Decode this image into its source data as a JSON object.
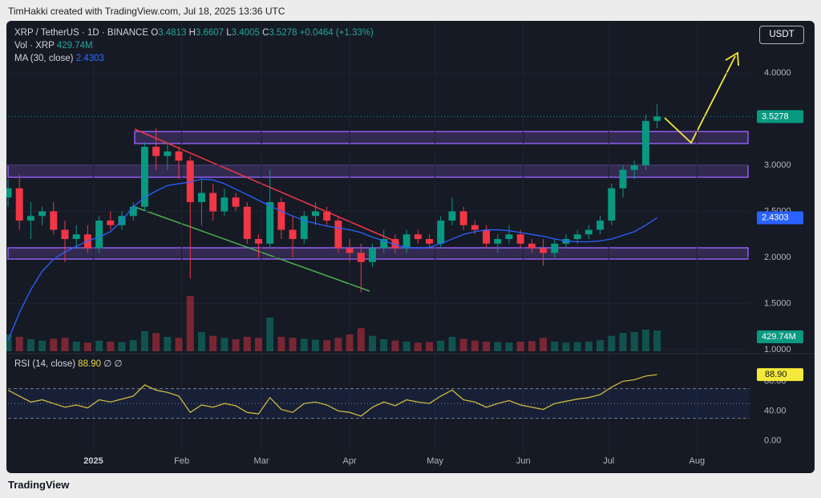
{
  "header": {
    "credit": "TimHakki created with TradingView.com, Jul 18, 2025 13:36 UTC",
    "symbol": "XRP / TetherUS · 1D · BINANCE",
    "o_label": "O",
    "o": "3.4813",
    "h_label": "H",
    "h": "3.6607",
    "l_label": "L",
    "l": "3.4005",
    "c_label": "C",
    "c": "3.5278",
    "change": "+0.0464 (+1.33%)",
    "vol_label": "Vol · XRP",
    "vol": "429.74M",
    "ma_label": "MA (30, close)",
    "ma": "2.4303",
    "rsi_label": "RSI (14, close)",
    "rsi": "88.90",
    "rsi_icons": "∅ ∅",
    "currency": "USDT",
    "brand": "TradingView"
  },
  "chart_data": [
    {
      "type": "candlestick",
      "up_color": "#089981",
      "down_color": "#f23645",
      "ma_color": "#2962ff",
      "xlim": [
        0,
        260.5
      ],
      "ylim": [
        0.983,
        4.557
      ],
      "xticks": [
        {
          "value": 30,
          "label": "2025"
        },
        {
          "value": 61,
          "label": "Feb"
        },
        {
          "value": 89,
          "label": "Mar"
        },
        {
          "value": 120,
          "label": "Apr"
        },
        {
          "value": 150,
          "label": "May"
        },
        {
          "value": 181,
          "label": "Jun"
        },
        {
          "value": 211,
          "label": "Jul"
        },
        {
          "value": 242,
          "label": "Aug"
        }
      ],
      "yticks": [
        {
          "value": 4,
          "label": "4.0000"
        },
        {
          "value": 3,
          "label": "3.0000"
        },
        {
          "value": 2.5,
          "label": "2.5000"
        },
        {
          "value": 2,
          "label": "2.0000"
        },
        {
          "value": 1.5,
          "label": "1.5000"
        },
        {
          "value": 1,
          "label": "1.0000"
        }
      ],
      "candles": [
        {
          "x": 0,
          "open": 2.65,
          "high": 2.85,
          "low": 2.55,
          "close": 2.75
        },
        {
          "x": 4,
          "open": 2.75,
          "high": 2.9,
          "low": 2.3,
          "close": 2.4
        },
        {
          "x": 8,
          "open": 2.4,
          "high": 2.6,
          "low": 2.2,
          "close": 2.45
        },
        {
          "x": 12,
          "open": 2.45,
          "high": 2.55,
          "low": 2.35,
          "close": 2.5
        },
        {
          "x": 16,
          "open": 2.5,
          "high": 2.6,
          "low": 2.25,
          "close": 2.3
        },
        {
          "x": 20,
          "open": 2.3,
          "high": 2.4,
          "low": 1.95,
          "close": 2.2
        },
        {
          "x": 24,
          "open": 2.2,
          "high": 2.35,
          "low": 2.1,
          "close": 2.25
        },
        {
          "x": 28,
          "open": 2.25,
          "high": 2.35,
          "low": 2.05,
          "close": 2.1
        },
        {
          "x": 32,
          "open": 2.1,
          "high": 2.45,
          "low": 2.05,
          "close": 2.4
        },
        {
          "x": 36,
          "open": 2.4,
          "high": 2.5,
          "low": 2.3,
          "close": 2.35
        },
        {
          "x": 40,
          "open": 2.35,
          "high": 2.5,
          "low": 2.3,
          "close": 2.45
        },
        {
          "x": 44,
          "open": 2.45,
          "high": 2.6,
          "low": 2.4,
          "close": 2.55
        },
        {
          "x": 48,
          "open": 2.55,
          "high": 3.25,
          "low": 2.5,
          "close": 3.2
        },
        {
          "x": 52,
          "open": 3.2,
          "high": 3.4,
          "low": 2.95,
          "close": 3.1
        },
        {
          "x": 56,
          "open": 3.1,
          "high": 3.25,
          "low": 2.95,
          "close": 3.15
        },
        {
          "x": 60,
          "open": 3.15,
          "high": 3.2,
          "low": 2.85,
          "close": 3.05
        },
        {
          "x": 64,
          "open": 3.05,
          "high": 3.1,
          "low": 1.77,
          "close": 2.6
        },
        {
          "x": 68,
          "open": 2.6,
          "high": 2.85,
          "low": 2.35,
          "close": 2.7
        },
        {
          "x": 72,
          "open": 2.7,
          "high": 2.8,
          "low": 2.4,
          "close": 2.5
        },
        {
          "x": 76,
          "open": 2.5,
          "high": 2.75,
          "low": 2.45,
          "close": 2.65
        },
        {
          "x": 80,
          "open": 2.65,
          "high": 2.7,
          "low": 2.5,
          "close": 2.55
        },
        {
          "x": 84,
          "open": 2.55,
          "high": 2.6,
          "low": 2.15,
          "close": 2.2
        },
        {
          "x": 88,
          "open": 2.2,
          "high": 2.25,
          "low": 2.0,
          "close": 2.15
        },
        {
          "x": 92,
          "open": 2.15,
          "high": 2.95,
          "low": 2.1,
          "close": 2.6
        },
        {
          "x": 96,
          "open": 2.6,
          "high": 2.65,
          "low": 2.2,
          "close": 2.3
        },
        {
          "x": 100,
          "open": 2.3,
          "high": 2.45,
          "low": 2.0,
          "close": 2.2
        },
        {
          "x": 104,
          "open": 2.2,
          "high": 2.5,
          "low": 2.15,
          "close": 2.45
        },
        {
          "x": 108,
          "open": 2.45,
          "high": 2.6,
          "low": 2.35,
          "close": 2.5
        },
        {
          "x": 112,
          "open": 2.5,
          "high": 2.55,
          "low": 2.35,
          "close": 2.4
        },
        {
          "x": 116,
          "open": 2.4,
          "high": 2.45,
          "low": 2.05,
          "close": 2.1
        },
        {
          "x": 120,
          "open": 2.1,
          "high": 2.2,
          "low": 1.95,
          "close": 2.05
        },
        {
          "x": 124,
          "open": 2.05,
          "high": 2.15,
          "low": 1.62,
          "close": 1.95
        },
        {
          "x": 128,
          "open": 1.95,
          "high": 2.15,
          "low": 1.9,
          "close": 2.1
        },
        {
          "x": 132,
          "open": 2.1,
          "high": 2.3,
          "low": 2.05,
          "close": 2.2
        },
        {
          "x": 136,
          "open": 2.2,
          "high": 2.25,
          "low": 2.05,
          "close": 2.1
        },
        {
          "x": 140,
          "open": 2.1,
          "high": 2.3,
          "low": 2.05,
          "close": 2.25
        },
        {
          "x": 144,
          "open": 2.25,
          "high": 2.3,
          "low": 2.15,
          "close": 2.2
        },
        {
          "x": 148,
          "open": 2.2,
          "high": 2.25,
          "low": 2.1,
          "close": 2.15
        },
        {
          "x": 152,
          "open": 2.15,
          "high": 2.45,
          "low": 2.1,
          "close": 2.4
        },
        {
          "x": 156,
          "open": 2.4,
          "high": 2.65,
          "low": 2.35,
          "close": 2.5
        },
        {
          "x": 160,
          "open": 2.5,
          "high": 2.55,
          "low": 2.3,
          "close": 2.35
        },
        {
          "x": 164,
          "open": 2.35,
          "high": 2.4,
          "low": 2.25,
          "close": 2.3
        },
        {
          "x": 168,
          "open": 2.3,
          "high": 2.35,
          "low": 2.1,
          "close": 2.15
        },
        {
          "x": 172,
          "open": 2.15,
          "high": 2.25,
          "low": 2.05,
          "close": 2.2
        },
        {
          "x": 176,
          "open": 2.2,
          "high": 2.35,
          "low": 2.15,
          "close": 2.25
        },
        {
          "x": 180,
          "open": 2.25,
          "high": 2.3,
          "low": 2.1,
          "close": 2.15
        },
        {
          "x": 184,
          "open": 2.15,
          "high": 2.2,
          "low": 2.05,
          "close": 2.1
        },
        {
          "x": 188,
          "open": 2.1,
          "high": 2.2,
          "low": 1.91,
          "close": 2.05
        },
        {
          "x": 192,
          "open": 2.05,
          "high": 2.2,
          "low": 2.0,
          "close": 2.15
        },
        {
          "x": 196,
          "open": 2.15,
          "high": 2.25,
          "low": 2.1,
          "close": 2.2
        },
        {
          "x": 200,
          "open": 2.2,
          "high": 2.3,
          "low": 2.15,
          "close": 2.25
        },
        {
          "x": 204,
          "open": 2.25,
          "high": 2.35,
          "low": 2.2,
          "close": 2.3
        },
        {
          "x": 208,
          "open": 2.3,
          "high": 2.45,
          "low": 2.25,
          "close": 2.4
        },
        {
          "x": 212,
          "open": 2.4,
          "high": 2.8,
          "low": 2.35,
          "close": 2.75
        },
        {
          "x": 216,
          "open": 2.75,
          "high": 3.0,
          "low": 2.65,
          "close": 2.95
        },
        {
          "x": 220,
          "open": 2.95,
          "high": 3.05,
          "low": 2.85,
          "close": 3.0
        },
        {
          "x": 224,
          "open": 3.0,
          "high": 3.55,
          "low": 2.95,
          "close": 3.48
        },
        {
          "x": 228,
          "open": 3.4813,
          "high": 3.6607,
          "low": 3.4005,
          "close": 3.5278
        }
      ],
      "volume": [
        350,
        300,
        250,
        220,
        260,
        280,
        200,
        180,
        220,
        200,
        190,
        230,
        420,
        380,
        300,
        280,
        1150,
        400,
        320,
        280,
        250,
        300,
        280,
        700,
        300,
        280,
        260,
        240,
        230,
        280,
        350,
        480,
        320,
        250,
        220,
        200,
        180,
        190,
        220,
        300,
        260,
        220,
        200,
        190,
        180,
        200,
        210,
        280,
        200,
        180,
        190,
        200,
        230,
        320,
        380,
        400,
        450,
        429.74
      ],
      "ma": [
        1.1,
        1.4,
        1.65,
        1.85,
        1.98,
        2.06,
        2.12,
        2.18,
        2.22,
        2.28,
        2.4,
        2.55,
        2.65,
        2.72,
        2.78,
        2.8,
        2.82,
        2.85,
        2.84,
        2.8,
        2.74,
        2.68,
        2.62,
        2.56,
        2.5,
        2.45,
        2.4,
        2.37,
        2.34,
        2.32,
        2.3,
        2.27,
        2.22,
        2.18,
        2.14,
        2.11,
        2.1,
        2.11,
        2.15,
        2.2,
        2.25,
        2.28,
        2.3,
        2.3,
        2.29,
        2.27,
        2.25,
        2.23,
        2.2,
        2.18,
        2.17,
        2.17,
        2.18,
        2.2,
        2.24,
        2.28,
        2.35,
        2.4303
      ]
    },
    {
      "type": "rsi",
      "color": "#d8c53a",
      "ylim": [
        -16.8,
        115
      ],
      "band": [
        30,
        70
      ],
      "mid": 50,
      "yticks": [
        {
          "value": 80,
          "label": "80.00"
        },
        {
          "value": 40,
          "label": "40.00"
        },
        {
          "value": 0,
          "label": "0.00"
        }
      ],
      "values": [
        68,
        60,
        52,
        55,
        50,
        45,
        48,
        44,
        55,
        52,
        56,
        60,
        75,
        68,
        65,
        60,
        38,
        48,
        45,
        50,
        47,
        38,
        36,
        58,
        42,
        38,
        50,
        52,
        48,
        40,
        38,
        33,
        45,
        52,
        47,
        55,
        52,
        50,
        60,
        68,
        55,
        52,
        45,
        50,
        54,
        48,
        45,
        42,
        50,
        53,
        56,
        58,
        62,
        72,
        80,
        82,
        87,
        88.9
      ]
    }
  ]
}
